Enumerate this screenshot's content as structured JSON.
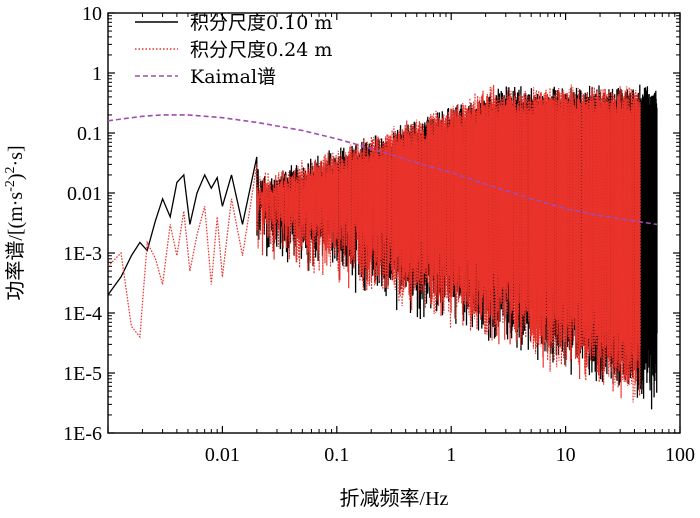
{
  "chart_data": {
    "type": "line",
    "title": "",
    "xlabel": "折减频率/Hz",
    "ylabel_main": "功率谱/[(m·s",
    "ylabel_exp1": "-2",
    "ylabel_mid": ")",
    "ylabel_exp2": "2",
    "ylabel_tail": "·s]",
    "xscale": "log",
    "yscale": "log",
    "xlim": [
      0.001,
      100
    ],
    "ylim": [
      1e-06,
      10
    ],
    "x_ticks": [
      0.001,
      0.01,
      0.1,
      1,
      10,
      100
    ],
    "x_tick_labels": [
      "",
      "0.01",
      "0.1",
      "1",
      "10",
      "100"
    ],
    "y_ticks": [
      1e-06,
      1e-05,
      0.0001,
      0.001,
      0.01,
      0.1,
      1,
      10
    ],
    "y_tick_labels": [
      "1E-6",
      "1E-5",
      "1E-4",
      "1E-3",
      "0.01",
      "0.1",
      "1",
      "10"
    ],
    "grid": false,
    "legend_position": "top-left",
    "series": [
      {
        "name": "积分尺度0.10 m",
        "color": "#000000",
        "style": "solid",
        "x_min": 0.001,
        "x_max": 63,
        "envelope_points": [
          [
            0.001,
            0.0002
          ],
          [
            0.0013,
            0.0004
          ],
          [
            0.0016,
            0.0009
          ],
          [
            0.0019,
            0.0015
          ],
          [
            0.0022,
            0.0011
          ],
          [
            0.0026,
            0.0035
          ],
          [
            0.003,
            0.008
          ],
          [
            0.0035,
            0.004
          ],
          [
            0.004,
            0.015
          ],
          [
            0.0046,
            0.02
          ],
          [
            0.0052,
            0.003
          ],
          [
            0.006,
            0.01
          ],
          [
            0.007,
            0.02
          ],
          [
            0.008,
            0.012
          ],
          [
            0.009,
            0.018
          ],
          [
            0.01,
            0.006
          ],
          [
            0.012,
            0.02
          ],
          [
            0.015,
            0.003
          ],
          [
            0.02,
            0.04
          ],
          [
            0.03,
            0.002
          ],
          [
            0.05,
            0.04
          ],
          [
            0.08,
            0.0004
          ],
          [
            0.12,
            0.15
          ],
          [
            0.2,
            0.0002
          ],
          [
            0.3,
            0.25
          ],
          [
            0.5,
            5e-05
          ],
          [
            1,
            1.0
          ],
          [
            2,
            2e-05
          ],
          [
            5,
            0.6
          ],
          [
            10,
            1e-05
          ],
          [
            20,
            0.5
          ],
          [
            40,
            3e-06
          ],
          [
            63,
            0.4
          ]
        ]
      },
      {
        "name": "积分尺度0.24 m",
        "color": "#e8322a",
        "style": "dotted",
        "x_min": 0.001,
        "x_max": 45,
        "envelope_points": [
          [
            0.001,
            0.0006
          ],
          [
            0.0013,
            0.001
          ],
          [
            0.0016,
            6e-05
          ],
          [
            0.0019,
            4e-05
          ],
          [
            0.0022,
            0.0015
          ],
          [
            0.0026,
            0.0008
          ],
          [
            0.003,
            0.0003
          ],
          [
            0.0035,
            0.003
          ],
          [
            0.004,
            0.0009
          ],
          [
            0.0046,
            0.005
          ],
          [
            0.0052,
            0.0005
          ],
          [
            0.006,
            0.002
          ],
          [
            0.007,
            0.006
          ],
          [
            0.008,
            0.0003
          ],
          [
            0.009,
            0.004
          ],
          [
            0.01,
            0.0004
          ],
          [
            0.012,
            0.008
          ],
          [
            0.015,
            0.0009
          ],
          [
            0.02,
            0.03
          ],
          [
            0.03,
            0.0003
          ],
          [
            0.05,
            0.06
          ],
          [
            0.08,
            0.0001
          ],
          [
            0.12,
            0.1
          ],
          [
            0.2,
            8e-05
          ],
          [
            0.3,
            0.3
          ],
          [
            0.5,
            4e-05
          ],
          [
            1,
            0.9
          ],
          [
            2,
            8e-06
          ],
          [
            5,
            0.7
          ],
          [
            10,
            1e-05
          ],
          [
            20,
            0.45
          ],
          [
            40,
            3e-06
          ],
          [
            45,
            0.35
          ]
        ]
      },
      {
        "name": "Kaimal谱",
        "color": "#a24bb0",
        "style": "dashed",
        "model": "Kaimal",
        "points": [
          [
            0.001,
            0.16
          ],
          [
            0.002,
            0.19
          ],
          [
            0.003,
            0.2
          ],
          [
            0.005,
            0.2
          ],
          [
            0.01,
            0.18
          ],
          [
            0.02,
            0.15
          ],
          [
            0.05,
            0.11
          ],
          [
            0.1,
            0.08
          ],
          [
            0.2,
            0.055
          ],
          [
            0.5,
            0.032
          ],
          [
            1,
            0.022
          ],
          [
            2,
            0.014
          ],
          [
            5,
            0.008
          ],
          [
            10,
            0.0055
          ],
          [
            20,
            0.0042
          ],
          [
            40,
            0.0034
          ],
          [
            63,
            0.003
          ]
        ]
      }
    ]
  }
}
